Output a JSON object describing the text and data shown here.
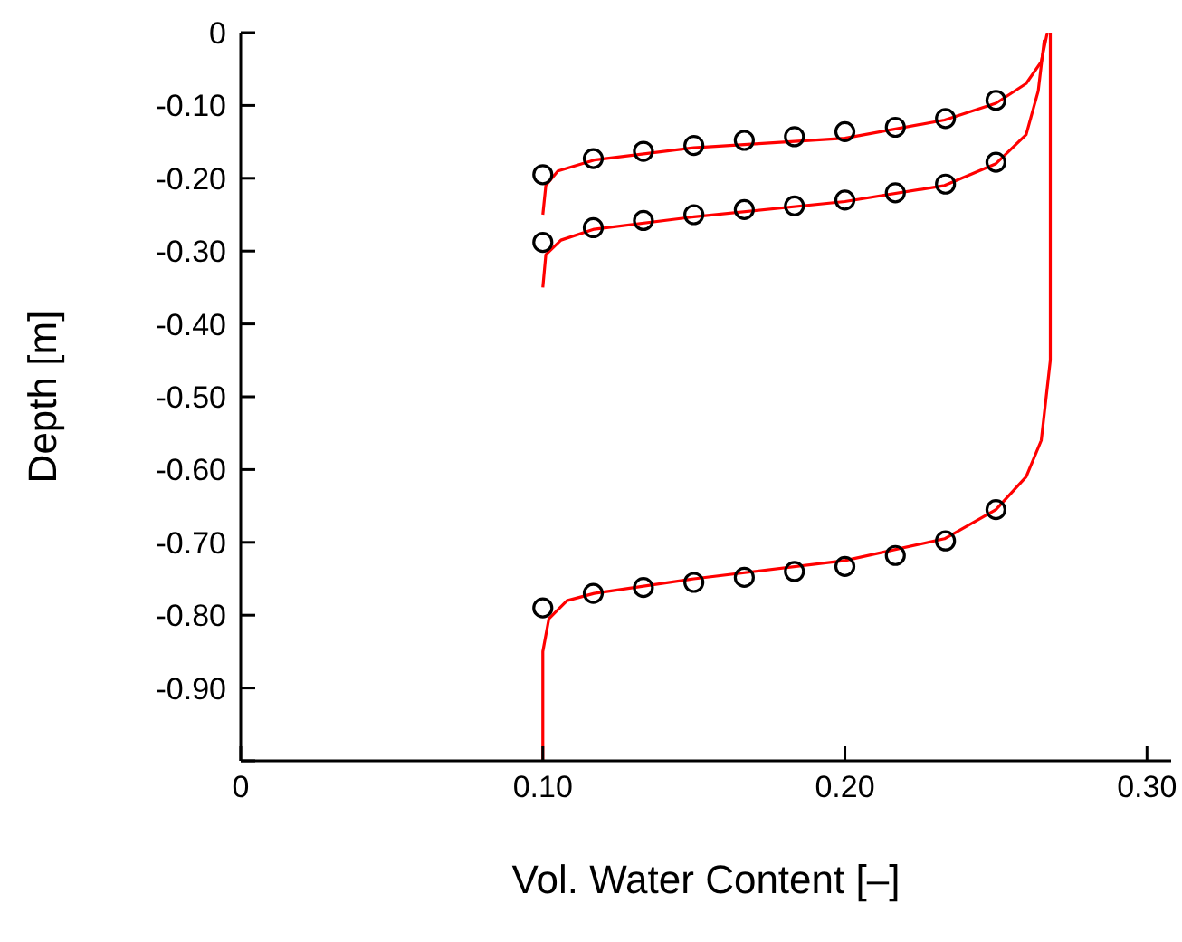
{
  "chart_data": {
    "type": "line",
    "xlabel": "Vol. Water Content [–]",
    "ylabel": "Depth [m]",
    "xlim": [
      0,
      0.308
    ],
    "ylim": [
      -1.0,
      0
    ],
    "xticks": [
      0,
      {
        "value": 0.1,
        "label": "0.10"
      },
      {
        "value": 0.2,
        "label": "0.20"
      },
      {
        "value": 0.3,
        "label": "0.30"
      }
    ],
    "yticks": [
      {
        "value": -1.0,
        "label": null
      },
      {
        "value": -0.9,
        "label": "-0.90"
      },
      {
        "value": -0.8,
        "label": "-0.80"
      },
      {
        "value": -0.7,
        "label": "-0.70"
      },
      {
        "value": -0.6,
        "label": "-0.60"
      },
      {
        "value": -0.5,
        "label": "-0.50"
      },
      {
        "value": -0.4,
        "label": "-0.40"
      },
      {
        "value": -0.3,
        "label": "-0.30"
      },
      {
        "value": -0.2,
        "label": "-0.20"
      },
      {
        "value": -0.1,
        "label": "-0.10"
      },
      0
    ],
    "grid": false,
    "series": [
      {
        "color": "#ff0000",
        "marker": "none",
        "line_style": "solid",
        "x": [
          0.1,
          0.101,
          0.105,
          0.117,
          0.15,
          0.2,
          0.233,
          0.25,
          0.26,
          0.265,
          0.267
        ],
        "values": [
          -0.25,
          -0.21,
          -0.19,
          -0.175,
          -0.158,
          -0.145,
          -0.12,
          -0.097,
          -0.07,
          -0.04,
          0
        ]
      },
      {
        "color": "#ff0000",
        "marker": "none",
        "line_style": "solid",
        "x": [
          0.1,
          0.101,
          0.106,
          0.117,
          0.15,
          0.2,
          0.233,
          0.25,
          0.26,
          0.264,
          0.266
        ],
        "values": [
          -0.35,
          -0.305,
          -0.285,
          -0.27,
          -0.253,
          -0.232,
          -0.21,
          -0.18,
          -0.14,
          -0.08,
          -0.01
        ]
      },
      {
        "color": "#ff0000",
        "marker": "none",
        "line_style": "solid",
        "x": [
          0.1,
          0.1,
          0.102,
          0.108,
          0.117,
          0.15,
          0.2,
          0.233,
          0.25,
          0.26,
          0.265,
          0.268,
          0.268
        ],
        "values": [
          -1.0,
          -0.85,
          -0.805,
          -0.78,
          -0.77,
          -0.75,
          -0.725,
          -0.695,
          -0.655,
          -0.61,
          -0.56,
          -0.45,
          0
        ]
      },
      {
        "type": "scatter",
        "color": "#000000",
        "marker": "circle",
        "x": [
          0.1,
          0.1167,
          0.1333,
          0.15,
          0.1667,
          0.1833,
          0.2,
          0.2167,
          0.2333,
          0.25
        ],
        "values": [
          -0.195,
          -0.173,
          -0.163,
          -0.155,
          -0.148,
          -0.143,
          -0.136,
          -0.13,
          -0.118,
          -0.093
        ]
      },
      {
        "type": "scatter",
        "color": "#000000",
        "marker": "circle",
        "x": [
          0.1,
          0.1167,
          0.1333,
          0.15,
          0.1667,
          0.1833,
          0.2,
          0.2167,
          0.2333,
          0.25
        ],
        "values": [
          -0.288,
          -0.268,
          -0.258,
          -0.25,
          -0.243,
          -0.238,
          -0.23,
          -0.22,
          -0.208,
          -0.178
        ]
      },
      {
        "type": "scatter",
        "color": "#000000",
        "marker": "circle",
        "x": [
          0.1,
          0.1167,
          0.1333,
          0.15,
          0.1667,
          0.1833,
          0.2,
          0.2167,
          0.2333,
          0.25
        ],
        "values": [
          -0.79,
          -0.77,
          -0.762,
          -0.755,
          -0.748,
          -0.74,
          -0.733,
          -0.718,
          -0.698,
          -0.655
        ]
      }
    ]
  }
}
